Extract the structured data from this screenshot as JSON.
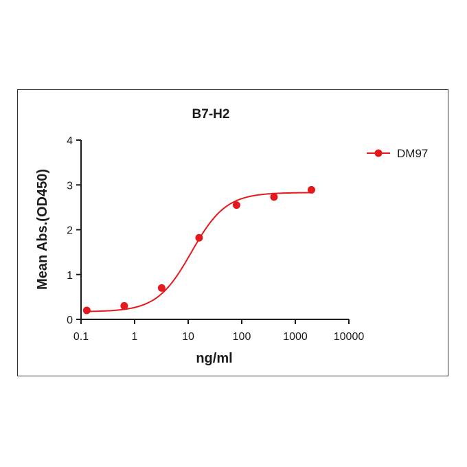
{
  "chart_data": {
    "type": "scatter",
    "title": "B7-H2",
    "xlabel": "ng/ml",
    "ylabel": "Mean Abs.(OD450)",
    "x_scale": "log",
    "xlim": [
      0.1,
      10000
    ],
    "ylim": [
      0,
      4
    ],
    "x_ticks": [
      "0.1",
      "1",
      "10",
      "100",
      "1000",
      "10000"
    ],
    "y_ticks": [
      "0",
      "1",
      "2",
      "3",
      "4"
    ],
    "grid": false,
    "legend_position": "right",
    "series": [
      {
        "name": "DM97",
        "color": "#e4191d",
        "marker": "circle",
        "x": [
          0.128,
          0.64,
          3.2,
          16,
          80,
          400,
          2000
        ],
        "y": [
          0.2,
          0.3,
          0.7,
          1.82,
          2.55,
          2.73,
          2.89
        ],
        "fit": {
          "model": "4PL",
          "bottom": 0.17,
          "top": 2.83,
          "ec50": 11.5,
          "hill": 1.35
        }
      }
    ]
  }
}
